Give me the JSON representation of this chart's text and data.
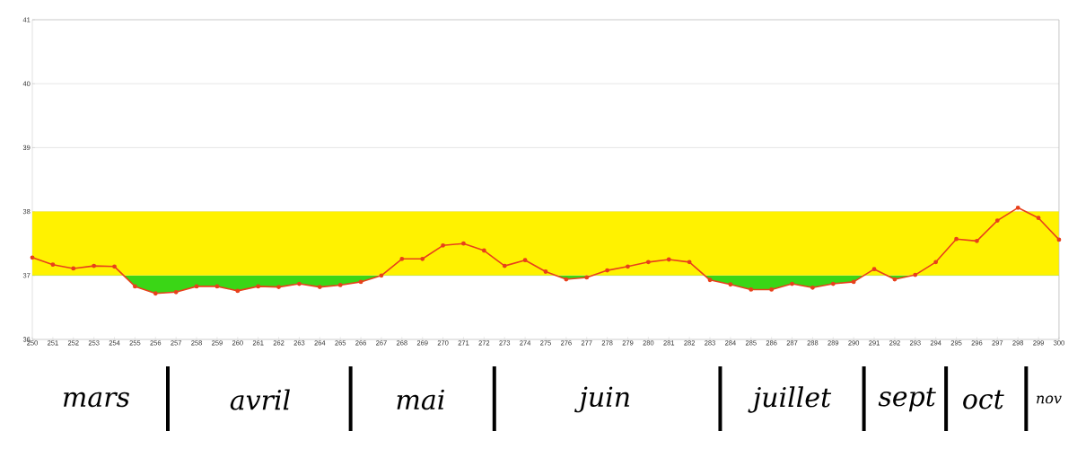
{
  "chart_data": {
    "type": "line",
    "color": "#e8401c",
    "marker": "circle",
    "grid": "y",
    "x": [
      250,
      251,
      252,
      253,
      254,
      255,
      256,
      257,
      258,
      259,
      260,
      261,
      262,
      263,
      264,
      265,
      266,
      267,
      268,
      269,
      270,
      271,
      272,
      273,
      274,
      275,
      276,
      277,
      278,
      279,
      280,
      281,
      282,
      283,
      284,
      285,
      286,
      287,
      288,
      289,
      290,
      291,
      292,
      293,
      294,
      295,
      296,
      297,
      298,
      299,
      300
    ],
    "values": [
      37.28,
      37.17,
      37.11,
      37.15,
      37.14,
      36.83,
      36.72,
      36.74,
      36.83,
      36.83,
      36.76,
      36.83,
      36.82,
      36.87,
      36.82,
      36.85,
      36.9,
      37.0,
      37.26,
      37.26,
      37.47,
      37.5,
      37.39,
      37.15,
      37.24,
      37.06,
      36.94,
      36.97,
      37.08,
      37.14,
      37.21,
      37.25,
      37.21,
      36.93,
      36.86,
      36.78,
      36.78,
      36.87,
      36.81,
      36.87,
      36.9,
      37.1,
      36.94,
      37.01,
      37.21,
      37.57,
      37.54,
      37.86,
      38.06,
      37.9,
      37.56
    ],
    "xlim": [
      250,
      300
    ],
    "ylim": [
      36,
      41
    ],
    "xticks": [
      250,
      251,
      252,
      253,
      254,
      255,
      256,
      257,
      258,
      259,
      260,
      261,
      262,
      263,
      264,
      265,
      266,
      267,
      268,
      269,
      270,
      271,
      272,
      273,
      274,
      275,
      276,
      277,
      278,
      279,
      280,
      281,
      282,
      283,
      284,
      285,
      286,
      287,
      288,
      289,
      290,
      291,
      292,
      293,
      294,
      295,
      296,
      297,
      298,
      299,
      300
    ],
    "yticks": [
      36,
      37,
      38,
      39,
      40,
      41
    ],
    "bands": [
      {
        "axis": "y",
        "from": 37,
        "to": 38,
        "color": "#fff200"
      }
    ],
    "annotations": [
      "mars",
      "avril",
      "mai",
      "juin",
      "juillet",
      "sept",
      "oct",
      "nov"
    ]
  }
}
